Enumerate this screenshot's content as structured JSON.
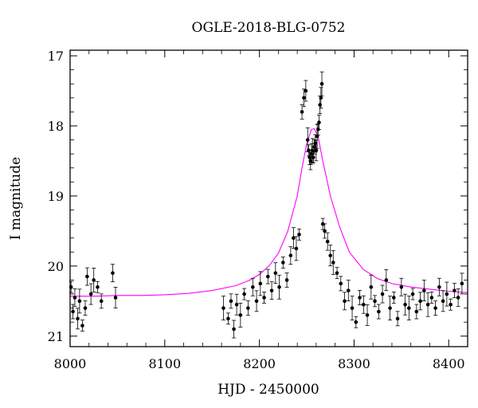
{
  "chart_data": {
    "type": "scatter",
    "title": "OGLE-2018-BLG-0752",
    "xlabel": "HJD - 2450000",
    "ylabel": "I magnitude",
    "xlim": [
      8000,
      8420
    ],
    "ylim": [
      21.15,
      16.92
    ],
    "y_inverted": true,
    "xticks": [
      "8000",
      "8100",
      "8200",
      "8300",
      "8400"
    ],
    "yticks": [
      "17",
      "18",
      "19",
      "20",
      "21"
    ],
    "grid": false,
    "legend": "none",
    "series": [
      {
        "kind": "points-with-error-bars",
        "color": "#000000",
        "x": [
          8001,
          8003,
          8005,
          8008,
          8010,
          8013,
          8016,
          8018,
          8022,
          8025,
          8029,
          8033,
          8045,
          8048,
          8162,
          8167,
          8170,
          8173,
          8176,
          8180,
          8184,
          8188,
          8193,
          8197,
          8201,
          8205,
          8209,
          8213,
          8217,
          8221,
          8225,
          8229,
          8233,
          8236,
          8239,
          8242,
          8245,
          8247,
          8249,
          8251,
          8252,
          8253,
          8254,
          8255,
          8256,
          8257,
          8258,
          8259,
          8260,
          8261,
          8262,
          8263,
          8264,
          8265,
          8266,
          8267,
          8269,
          8272,
          8275,
          8278,
          8282,
          8286,
          8290,
          8294,
          8298,
          8302,
          8306,
          8310,
          8314,
          8318,
          8322,
          8326,
          8330,
          8334,
          8338,
          8342,
          8346,
          8350,
          8354,
          8358,
          8362,
          8366,
          8370,
          8374,
          8378,
          8382,
          8386,
          8390,
          8394,
          8398,
          8402,
          8406,
          8410,
          8414
        ],
        "y": [
          20.3,
          20.65,
          20.45,
          20.75,
          20.5,
          20.85,
          20.6,
          20.15,
          20.4,
          20.2,
          20.3,
          20.5,
          20.1,
          20.45,
          20.6,
          20.75,
          20.5,
          20.9,
          20.55,
          20.7,
          20.4,
          20.6,
          20.3,
          20.5,
          20.25,
          20.45,
          20.15,
          20.35,
          20.1,
          20.3,
          19.95,
          20.2,
          19.85,
          19.6,
          19.75,
          19.55,
          17.8,
          17.6,
          17.5,
          18.2,
          18.35,
          18.45,
          18.5,
          18.4,
          18.35,
          18.45,
          18.3,
          18.25,
          18.35,
          18.15,
          18.05,
          17.95,
          17.7,
          17.6,
          17.4,
          19.4,
          19.5,
          19.65,
          19.85,
          19.95,
          20.1,
          20.25,
          20.5,
          20.35,
          20.6,
          20.8,
          20.45,
          20.55,
          20.7,
          20.3,
          20.5,
          20.65,
          20.4,
          20.2,
          20.6,
          20.45,
          20.75,
          20.3,
          20.55,
          20.6,
          20.4,
          20.65,
          20.5,
          20.35,
          20.55,
          20.45,
          20.6,
          20.3,
          20.5,
          20.4,
          20.55,
          20.35,
          20.45,
          20.25
        ]
      },
      {
        "kind": "model-curve",
        "color": "#ff00ff",
        "x": [
          8000,
          8025,
          8050,
          8075,
          8100,
          8125,
          8150,
          8175,
          8190,
          8200,
          8210,
          8220,
          8230,
          8240,
          8245,
          8250,
          8255,
          8258,
          8262,
          8267,
          8275,
          8285,
          8295,
          8310,
          8325,
          8340,
          8360,
          8380,
          8400,
          8420
        ],
        "y": [
          20.43,
          20.43,
          20.42,
          20.42,
          20.41,
          20.39,
          20.35,
          20.28,
          20.2,
          20.12,
          20.0,
          19.82,
          19.5,
          19.0,
          18.6,
          18.25,
          18.05,
          18.04,
          18.15,
          18.5,
          19.0,
          19.45,
          19.8,
          20.05,
          20.18,
          20.25,
          20.3,
          20.33,
          20.36,
          20.38
        ]
      }
    ]
  }
}
